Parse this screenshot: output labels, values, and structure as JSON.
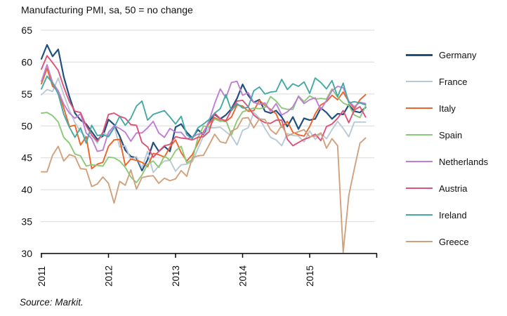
{
  "title": "Manufacturing PMI, sa, 50 = no change",
  "source": "Source: Markit.",
  "chart_data": {
    "type": "line",
    "title": "Manufacturing PMI, sa, 50 = no change",
    "xlabel": "",
    "ylabel": "",
    "x_start": "2011-01",
    "x_end": "2015-11",
    "frequency": "monthly",
    "ylim": [
      30,
      65
    ],
    "yticks": [
      65,
      60,
      55,
      50,
      45,
      40,
      35,
      30
    ],
    "xtick_labels": [
      "2011",
      "2012",
      "2013",
      "2014",
      "2015"
    ],
    "grid": true,
    "legend_position": "right",
    "reference_level_note": "50 = no change",
    "series": [
      {
        "name": "Germany",
        "color": "#21507f",
        "values": [
          60.5,
          62.7,
          60.9,
          62.0,
          57.7,
          54.6,
          52.0,
          50.9,
          50.3,
          49.1,
          47.9,
          48.4,
          51.0,
          50.2,
          48.4,
          46.2,
          45.2,
          45.0,
          43.0,
          44.7,
          47.4,
          46.0,
          46.8,
          46.0,
          49.8,
          50.3,
          49.0,
          48.1,
          49.4,
          48.6,
          50.7,
          51.8,
          51.1,
          51.7,
          52.7,
          54.3,
          56.5,
          54.8,
          53.7,
          54.1,
          52.3,
          52.0,
          52.4,
          51.4,
          49.9,
          51.4,
          49.5,
          51.2,
          50.9,
          51.1,
          52.8,
          52.1,
          51.1,
          51.9,
          51.8,
          53.3,
          52.3,
          52.1,
          52.9
        ]
      },
      {
        "name": "France",
        "color": "#b9c9d6",
        "values": [
          54.9,
          55.7,
          55.4,
          57.5,
          54.9,
          52.5,
          50.5,
          49.1,
          48.2,
          48.5,
          47.3,
          48.9,
          48.5,
          50.0,
          46.7,
          46.9,
          44.7,
          45.2,
          43.4,
          46.0,
          42.7,
          43.7,
          44.5,
          44.6,
          42.9,
          43.9,
          44.0,
          44.4,
          46.4,
          48.4,
          49.7,
          49.7,
          49.8,
          49.1,
          48.4,
          47.0,
          49.3,
          49.7,
          52.1,
          51.2,
          49.6,
          48.2,
          47.8,
          46.9,
          48.8,
          48.5,
          48.4,
          47.5,
          49.2,
          47.9,
          48.8,
          48.0,
          49.4,
          50.7,
          49.6,
          48.3,
          50.6,
          50.6,
          50.6
        ]
      },
      {
        "name": "Italy",
        "color": "#ee6428",
        "values": [
          56.6,
          59.0,
          56.2,
          55.5,
          52.8,
          49.9,
          50.1,
          47.0,
          48.3,
          43.3,
          44.0,
          44.3,
          46.8,
          47.8,
          47.9,
          43.8,
          44.8,
          44.6,
          44.3,
          43.6,
          45.7,
          45.5,
          45.1,
          46.7,
          47.8,
          45.8,
          44.5,
          45.5,
          47.3,
          49.1,
          50.4,
          51.3,
          50.8,
          50.7,
          51.4,
          53.3,
          53.1,
          52.3,
          52.4,
          54.0,
          53.2,
          52.6,
          51.9,
          49.8,
          50.7,
          49.0,
          48.6,
          48.4,
          49.9,
          51.9,
          53.3,
          53.8,
          54.8,
          54.1,
          55.3,
          53.8,
          52.7,
          54.1,
          54.9
        ]
      },
      {
        "name": "Spain",
        "color": "#8bc97a",
        "values": [
          52.0,
          52.1,
          51.6,
          50.6,
          48.2,
          47.3,
          45.6,
          45.3,
          43.7,
          43.9,
          43.8,
          43.7,
          45.1,
          45.0,
          44.5,
          43.5,
          42.0,
          41.1,
          42.3,
          44.0,
          44.5,
          43.5,
          45.3,
          44.6,
          46.1,
          46.8,
          44.2,
          44.7,
          48.1,
          50.0,
          49.8,
          51.1,
          50.7,
          50.9,
          48.6,
          50.8,
          52.2,
          52.5,
          52.8,
          52.7,
          52.9,
          54.6,
          53.9,
          52.8,
          52.6,
          52.6,
          54.7,
          53.8,
          54.7,
          54.2,
          54.3,
          54.2,
          55.8,
          54.5,
          53.6,
          53.2,
          51.7,
          51.3,
          53.1
        ]
      },
      {
        "name": "Netherlands",
        "color": "#bf7dd6",
        "values": [
          57.0,
          59.6,
          56.8,
          55.5,
          53.4,
          52.0,
          51.2,
          51.9,
          48.9,
          48.0,
          46.0,
          46.2,
          49.0,
          50.0,
          49.6,
          49.0,
          47.6,
          48.9,
          48.9,
          49.7,
          50.7,
          48.9,
          48.2,
          49.6,
          49.0,
          49.0,
          48.0,
          48.2,
          48.7,
          48.8,
          50.8,
          53.5,
          55.8,
          54.4,
          56.8,
          57.0,
          54.8,
          55.2,
          53.7,
          53.4,
          53.6,
          52.3,
          53.5,
          51.7,
          52.2,
          53.0,
          54.6,
          53.5,
          54.1,
          54.4,
          52.5,
          54.0,
          55.5,
          56.2,
          56.0,
          53.9,
          53.0,
          53.7,
          53.5
        ]
      },
      {
        "name": "Austria",
        "color": "#df5278",
        "values": [
          58.9,
          61.0,
          59.9,
          58.7,
          56.1,
          53.8,
          52.3,
          52.1,
          50.0,
          48.6,
          47.6,
          49.0,
          51.8,
          52.0,
          51.5,
          51.2,
          50.2,
          50.1,
          47.4,
          46.7,
          45.1,
          46.0,
          46.9,
          47.1,
          48.3,
          48.1,
          48.0,
          47.8,
          48.2,
          48.3,
          49.1,
          52.0,
          51.1,
          50.8,
          52.5,
          53.9,
          54.0,
          53.0,
          51.7,
          51.0,
          50.5,
          50.4,
          50.9,
          50.9,
          47.9,
          46.9,
          47.4,
          47.9,
          48.2,
          48.7,
          47.7,
          49.9,
          50.3,
          51.2,
          52.4,
          50.5,
          52.5,
          53.0,
          51.4
        ]
      },
      {
        "name": "Ireland",
        "color": "#46a9a5",
        "values": [
          55.8,
          57.8,
          56.7,
          55.0,
          51.8,
          49.8,
          48.2,
          49.7,
          47.3,
          50.1,
          48.5,
          48.6,
          48.3,
          49.7,
          51.5,
          50.1,
          51.2,
          53.1,
          53.9,
          50.9,
          51.8,
          52.1,
          52.4,
          51.4,
          50.3,
          51.5,
          48.6,
          48.0,
          49.7,
          50.3,
          51.0,
          52.0,
          52.7,
          54.9,
          52.4,
          53.5,
          52.8,
          52.9,
          55.5,
          56.1,
          55.0,
          55.3,
          55.4,
          57.3,
          55.7,
          56.6,
          56.2,
          56.9,
          55.1,
          57.5,
          56.8,
          55.8,
          57.1,
          54.6,
          56.7,
          53.6,
          53.8,
          53.6,
          53.3
        ]
      },
      {
        "name": "Greece",
        "color": "#d0a17c",
        "values": [
          42.8,
          42.8,
          45.4,
          46.8,
          44.5,
          45.5,
          45.2,
          43.3,
          43.2,
          40.5,
          40.9,
          42.0,
          41.0,
          37.9,
          41.3,
          40.7,
          43.1,
          40.1,
          41.9,
          42.1,
          42.2,
          41.0,
          41.8,
          41.4,
          41.7,
          43.0,
          42.1,
          45.0,
          45.3,
          45.4,
          47.0,
          48.7,
          47.5,
          47.3,
          49.2,
          49.6,
          51.2,
          51.3,
          49.7,
          51.1,
          51.0,
          49.4,
          48.7,
          50.1,
          48.4,
          48.8,
          49.1,
          49.4,
          48.3,
          48.4,
          48.9,
          46.5,
          48.0,
          46.9,
          30.2,
          39.1,
          43.3,
          47.3,
          48.1
        ]
      }
    ]
  }
}
